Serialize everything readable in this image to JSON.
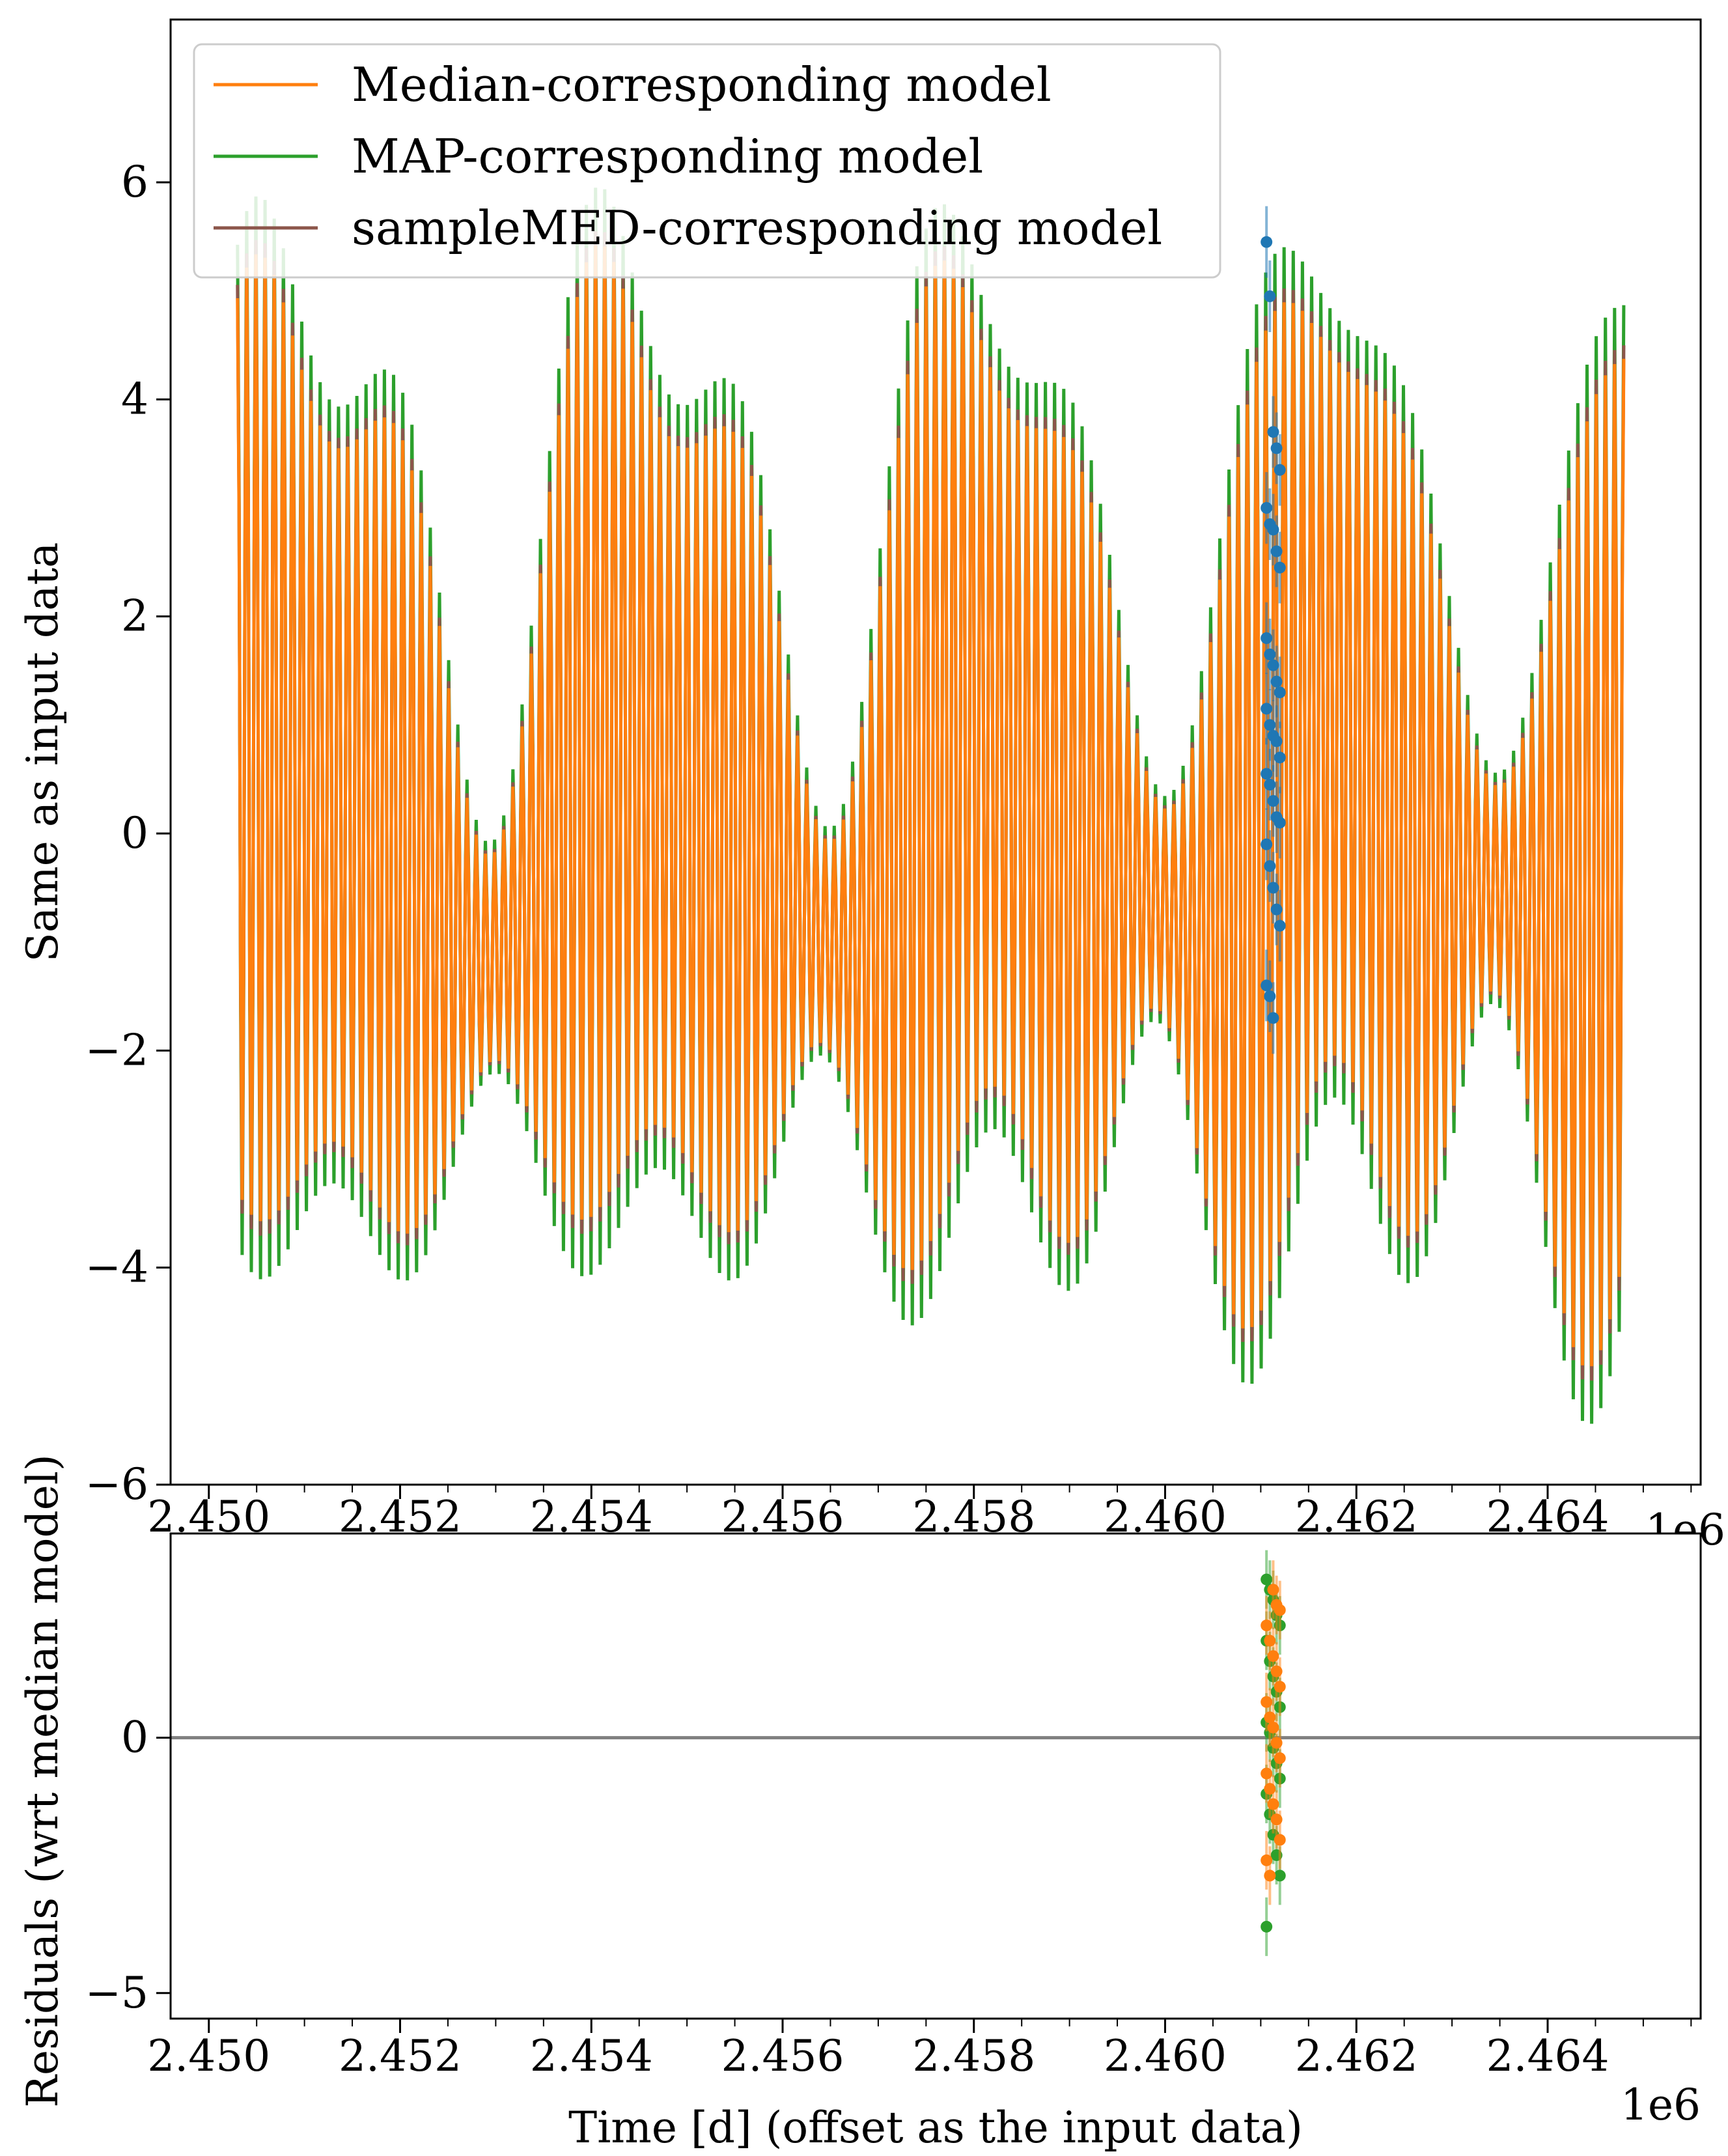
{
  "chart_data": [
    {
      "type": "line",
      "panel": "top",
      "xlabel": "",
      "ylabel": "Same as input data",
      "xlim": [
        2448600,
        2464600
      ],
      "ylim": [
        -6.0,
        7.5
      ],
      "xticks": [
        2449000,
        2451000,
        2453000,
        2455000,
        2457000,
        2459000,
        2461000,
        2463000
      ],
      "xtick_labels": [
        "2.450",
        "2.452",
        "2.454",
        "2.456",
        "2.458",
        "2.460",
        "2.462",
        "2.464"
      ],
      "yticks": [
        -6,
        -4,
        -2,
        0,
        2,
        4,
        6
      ],
      "ytick_labels": [
        "−6",
        "−4",
        "−2",
        "0",
        "2",
        "4",
        "6"
      ],
      "x_offset_label": "1e6",
      "legend_position": "top-left",
      "series": [
        {
          "name": "Median-corresponding model",
          "color": "#ff7f0e"
        },
        {
          "name": "MAP-corresponding model",
          "color": "#2ca02c"
        },
        {
          "name": "sampleMED-corresponding model",
          "color": "#8c564b"
        }
      ],
      "model": {
        "x_start": 2449300,
        "x_end": 2463800,
        "oscillation_period_days": 96,
        "color_data": "#1f77b4"
      },
      "data_points": {
        "x_range": [
          2460060,
          2460200
        ],
        "y": [
          5.45,
          4.95,
          3.7,
          3.55,
          3.35,
          3.0,
          2.85,
          2.8,
          2.6,
          2.45,
          1.8,
          1.65,
          1.55,
          1.4,
          1.3,
          1.15,
          1.0,
          0.9,
          0.85,
          0.7,
          0.55,
          0.45,
          0.3,
          0.15,
          0.1,
          -0.1,
          -0.3,
          -0.5,
          -0.7,
          -0.85,
          -1.4,
          -1.5,
          -1.7
        ],
        "color": "#1f77b4"
      }
    },
    {
      "type": "scatter",
      "panel": "bottom",
      "xlabel": "Time [d] (offset as the input data)",
      "ylabel": "Residuals (wrt median model)",
      "xlim": [
        2448600,
        2464600
      ],
      "ylim": [
        -5.5,
        4.0
      ],
      "xticks": [
        2449000,
        2451000,
        2453000,
        2455000,
        2457000,
        2459000,
        2461000,
        2463000
      ],
      "xtick_labels": [
        "2.450",
        "2.452",
        "2.454",
        "2.456",
        "2.458",
        "2.460",
        "2.462",
        "2.464"
      ],
      "yticks": [
        -5,
        0
      ],
      "ytick_labels": [
        "−5",
        "0"
      ],
      "x_offset_label": "1e6",
      "zero_line_color": "#808080",
      "series": [
        {
          "color": "#2ca02c",
          "x_range": [
            2460060,
            2460200
          ],
          "y": [
            3.1,
            2.9,
            2.7,
            2.4,
            2.2,
            1.9,
            1.5,
            1.2,
            0.9,
            0.6,
            0.3,
            0.1,
            -0.2,
            -0.5,
            -0.8,
            -1.1,
            -1.5,
            -1.9,
            -2.3,
            -2.7,
            -3.7
          ]
        },
        {
          "color": "#ff7f0e",
          "x_range": [
            2460060,
            2460200
          ],
          "y": [
            2.9,
            2.6,
            2.5,
            2.2,
            1.9,
            1.6,
            1.3,
            1.0,
            0.7,
            0.4,
            0.2,
            -0.1,
            -0.4,
            -0.7,
            -1.0,
            -1.3,
            -1.6,
            -2.0,
            -2.4,
            -2.7
          ]
        }
      ]
    }
  ]
}
